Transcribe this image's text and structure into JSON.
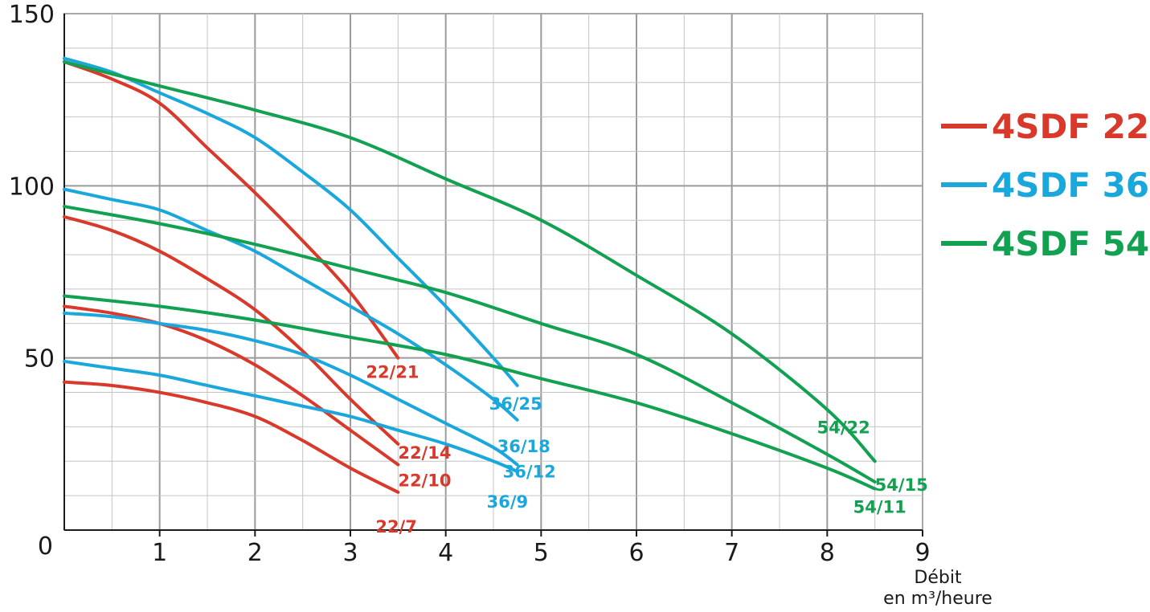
{
  "chart_data": {
    "type": "line",
    "xlabel_line1": "Débit",
    "xlabel_line2": "en m³/heure",
    "xlim": [
      0,
      9
    ],
    "ylim": [
      0,
      150
    ],
    "grid": true,
    "legend_placement": "right",
    "x_ticks": [
      "1",
      "2",
      "3",
      "4",
      "5",
      "6",
      "7",
      "8",
      "9"
    ],
    "y_ticks": [
      "0",
      "50",
      "100",
      "150"
    ],
    "legend": [
      {
        "name": "4SDF 22",
        "color": "#d9392b"
      },
      {
        "name": "4SDF 36",
        "color": "#1aa7dc"
      },
      {
        "name": "4SDF 54",
        "color": "#12a150"
      }
    ],
    "series": [
      {
        "name": "22/21",
        "group": "4SDF 22",
        "color": "#d9392b",
        "x": [
          0,
          0.5,
          1,
          1.5,
          2,
          2.5,
          3,
          3.5
        ],
        "y": [
          136,
          131,
          124,
          111,
          98,
          84,
          69,
          50
        ]
      },
      {
        "name": "22/14",
        "group": "4SDF 22",
        "color": "#d9392b",
        "x": [
          0,
          0.5,
          1,
          1.5,
          2,
          2.5,
          3,
          3.5
        ],
        "y": [
          91,
          87,
          81,
          73,
          64,
          52,
          38,
          25
        ]
      },
      {
        "name": "22/10",
        "group": "4SDF 22",
        "color": "#d9392b",
        "x": [
          0,
          0.5,
          1,
          1.5,
          2,
          2.5,
          3,
          3.5
        ],
        "y": [
          65,
          63,
          60,
          55,
          48,
          39,
          29,
          19
        ]
      },
      {
        "name": "22/7",
        "group": "4SDF 22",
        "color": "#d9392b",
        "x": [
          0,
          0.5,
          1,
          1.5,
          2,
          2.5,
          3,
          3.5
        ],
        "y": [
          43,
          42,
          40,
          37,
          33,
          26,
          18,
          11
        ]
      },
      {
        "name": "36/25",
        "group": "4SDF 36",
        "color": "#1aa7dc",
        "x": [
          0,
          0.5,
          1,
          1.5,
          2,
          2.5,
          3,
          3.5,
          4,
          4.5,
          4.75
        ],
        "y": [
          137,
          133,
          127,
          121,
          114,
          104,
          93,
          79,
          65,
          50,
          42
        ]
      },
      {
        "name": "36/18",
        "group": "4SDF 36",
        "color": "#1aa7dc",
        "x": [
          0,
          0.5,
          1,
          1.5,
          2,
          2.5,
          3,
          3.5,
          4,
          4.5,
          4.75
        ],
        "y": [
          99,
          96,
          93,
          87,
          81,
          73,
          65,
          57,
          48,
          38,
          32
        ]
      },
      {
        "name": "36/12",
        "group": "4SDF 36",
        "color": "#1aa7dc",
        "x": [
          0,
          0.5,
          1,
          1.5,
          2,
          2.5,
          3,
          3.5,
          4,
          4.5,
          4.75
        ],
        "y": [
          63,
          62,
          60,
          58,
          55,
          51,
          45,
          38,
          31,
          24,
          19
        ]
      },
      {
        "name": "36/9",
        "group": "4SDF 36",
        "color": "#1aa7dc",
        "x": [
          0,
          0.5,
          1,
          1.5,
          2,
          2.5,
          3,
          3.5,
          4,
          4.5,
          4.75
        ],
        "y": [
          49,
          47,
          45,
          42,
          39,
          36,
          33,
          29,
          25,
          20,
          17
        ]
      },
      {
        "name": "54/22",
        "group": "4SDF 54",
        "color": "#12a150",
        "x": [
          0,
          1,
          2,
          3,
          4,
          5,
          6,
          7,
          8,
          8.5
        ],
        "y": [
          136,
          129,
          122,
          114,
          102,
          90,
          74,
          57,
          35,
          20
        ]
      },
      {
        "name": "54/15",
        "group": "4SDF 54",
        "color": "#12a150",
        "x": [
          0,
          1,
          2,
          3,
          4,
          5,
          6,
          7,
          8,
          8.5
        ],
        "y": [
          94,
          89,
          83,
          76,
          69,
          60,
          51,
          37,
          22,
          14
        ]
      },
      {
        "name": "54/11",
        "group": "4SDF 54",
        "color": "#12a150",
        "x": [
          0,
          1,
          2,
          3,
          4,
          5,
          6,
          7,
          8,
          8.5
        ],
        "y": [
          68,
          65,
          61,
          56,
          51,
          44,
          37,
          28,
          18,
          12
        ]
      }
    ]
  }
}
